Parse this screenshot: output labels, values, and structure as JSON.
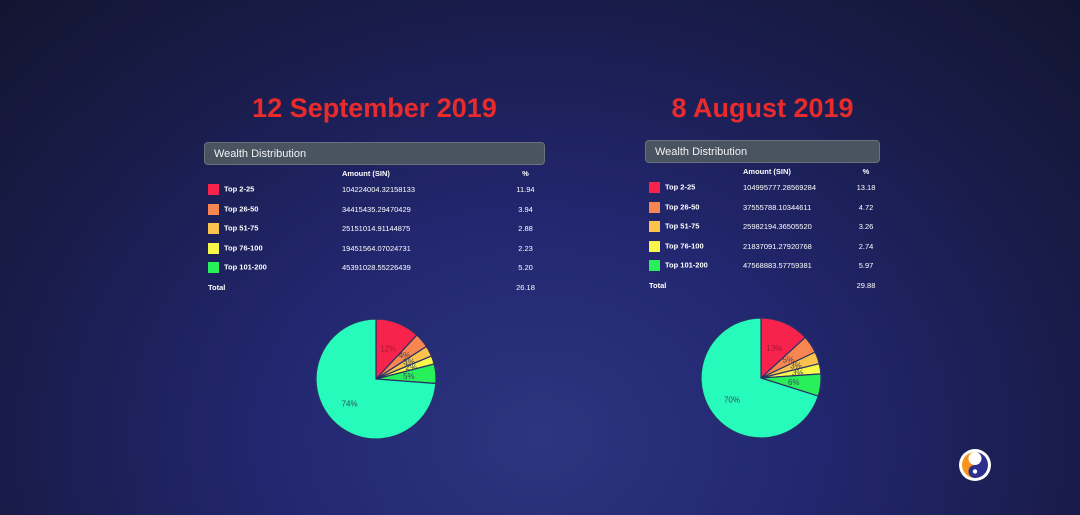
{
  "colors": {
    "top_2_25": "#f7234d",
    "top_26_50": "#f88651",
    "top_51_75": "#fbc24e",
    "top_76_100": "#f9f74a",
    "top_101_200": "#27f05a",
    "rest": "#26fbbc"
  },
  "chart_data": [
    {
      "type": "pie",
      "title": "12 September 2019",
      "table_title": "Wealth Distribution",
      "columns": [
        "",
        "Amount (SIN)",
        "%"
      ],
      "rows": [
        {
          "name": "Top 2-25",
          "amount": "104224004.32158133",
          "pct": "11.94",
          "color": "#f7234d"
        },
        {
          "name": "Top 26-50",
          "amount": "34415435.29470429",
          "pct": "3.94",
          "color": "#f88651"
        },
        {
          "name": "Top 51-75",
          "amount": "25151014.91144875",
          "pct": "2.88",
          "color": "#fbc24e"
        },
        {
          "name": "Top 76-100",
          "amount": "19451564.07024731",
          "pct": "2.23",
          "color": "#f9f74a"
        },
        {
          "name": "Top 101-200",
          "amount": "45391028.55226439",
          "pct": "5.20",
          "color": "#27f05a"
        }
      ],
      "total_label": "Total",
      "total_pct": "26.18",
      "slices": [
        11.94,
        3.94,
        2.88,
        2.23,
        5.2,
        73.82
      ],
      "slice_labels": [
        "12%",
        "4%",
        "3%",
        "2%",
        "5%",
        "74%"
      ]
    },
    {
      "type": "pie",
      "title": "8 August 2019",
      "table_title": "Wealth Distribution",
      "columns": [
        "",
        "Amount (SIN)",
        "%"
      ],
      "rows": [
        {
          "name": "Top 2-25",
          "amount": "104995777.28569284",
          "pct": "13.18",
          "color": "#f7234d"
        },
        {
          "name": "Top 26-50",
          "amount": "37555788.10344611",
          "pct": "4.72",
          "color": "#f88651"
        },
        {
          "name": "Top 51-75",
          "amount": "25982194.36505520",
          "pct": "3.26",
          "color": "#fbc24e"
        },
        {
          "name": "Top 76-100",
          "amount": "21837091.27920768",
          "pct": "2.74",
          "color": "#f9f74a"
        },
        {
          "name": "Top 101-200",
          "amount": "47568883.57759381",
          "pct": "5.97",
          "color": "#27f05a"
        }
      ],
      "total_label": "Total",
      "total_pct": "29.88",
      "slices": [
        13.18,
        4.72,
        3.26,
        2.74,
        5.97,
        70.12
      ],
      "slice_labels": [
        "13%",
        "5%",
        "3%",
        "3%",
        "6%",
        "70%"
      ]
    }
  ],
  "logo": {
    "icon": "swirl-logo-icon"
  }
}
